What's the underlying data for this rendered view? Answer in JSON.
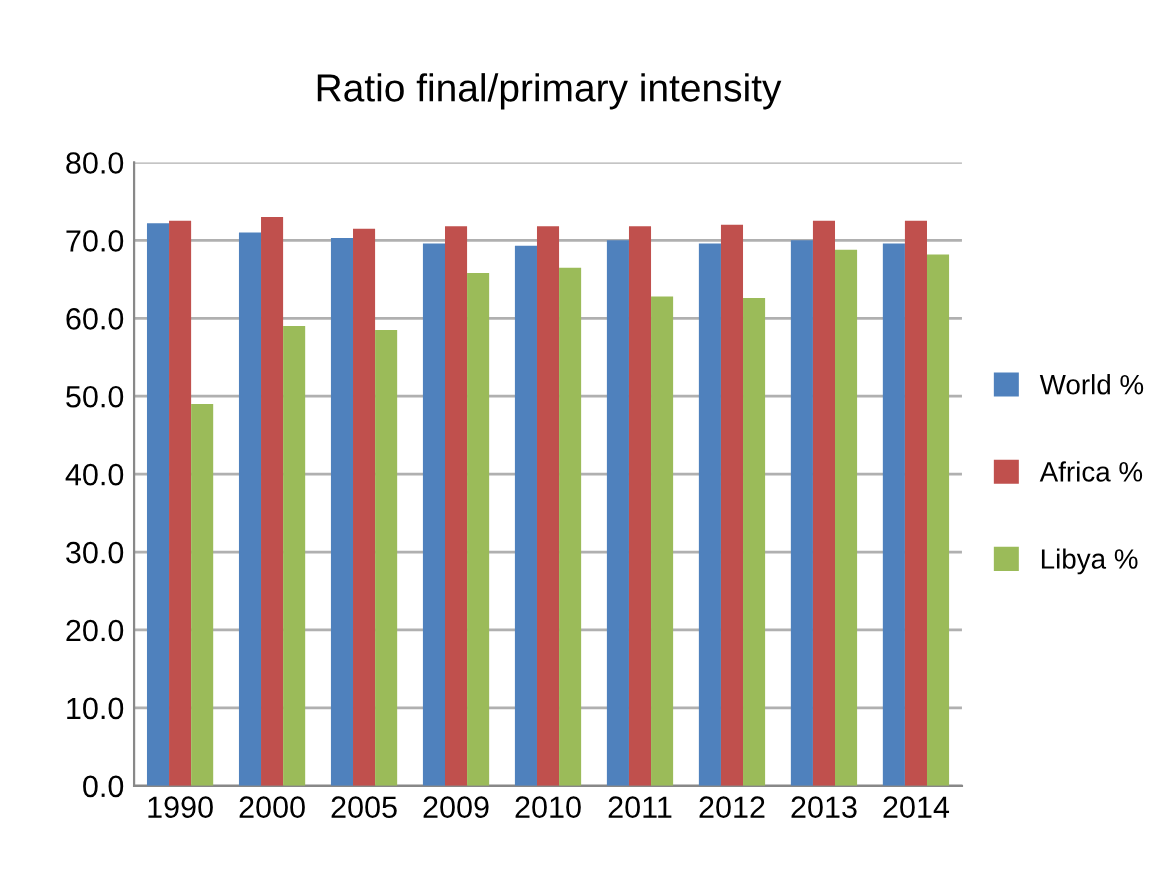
{
  "chart_data": {
    "type": "bar",
    "title": "Ratio final/primary intensity",
    "categories": [
      "1990",
      "2000",
      "2005",
      "2009",
      "2010",
      "2011",
      "2012",
      "2013",
      "2014"
    ],
    "series": [
      {
        "name": "World %",
        "color": "#4f81bd",
        "values": [
          72.2,
          71.0,
          70.3,
          69.6,
          69.3,
          70.0,
          69.6,
          70.0,
          69.6
        ]
      },
      {
        "name": "Africa %",
        "color": "#c0504d",
        "values": [
          72.5,
          73.0,
          71.5,
          71.8,
          71.8,
          71.8,
          72.0,
          72.5,
          72.5
        ]
      },
      {
        "name": "Libya %",
        "color": "#9bbb59",
        "values": [
          49.0,
          59.0,
          58.5,
          65.8,
          66.5,
          62.8,
          62.6,
          68.8,
          68.2
        ]
      }
    ],
    "ylim": [
      0,
      80
    ],
    "yticks": [
      {
        "value": 0,
        "label": "0.0"
      },
      {
        "value": 10,
        "label": "10.0"
      },
      {
        "value": 20,
        "label": "20.0"
      },
      {
        "value": 30,
        "label": "30.0"
      },
      {
        "value": 40,
        "label": "40.0"
      },
      {
        "value": 50,
        "label": "50.0"
      },
      {
        "value": 60,
        "label": "60.0"
      },
      {
        "value": 70,
        "label": "70.0"
      },
      {
        "value": 80,
        "label": "80.0"
      }
    ],
    "grid": "y",
    "legend": "right"
  }
}
